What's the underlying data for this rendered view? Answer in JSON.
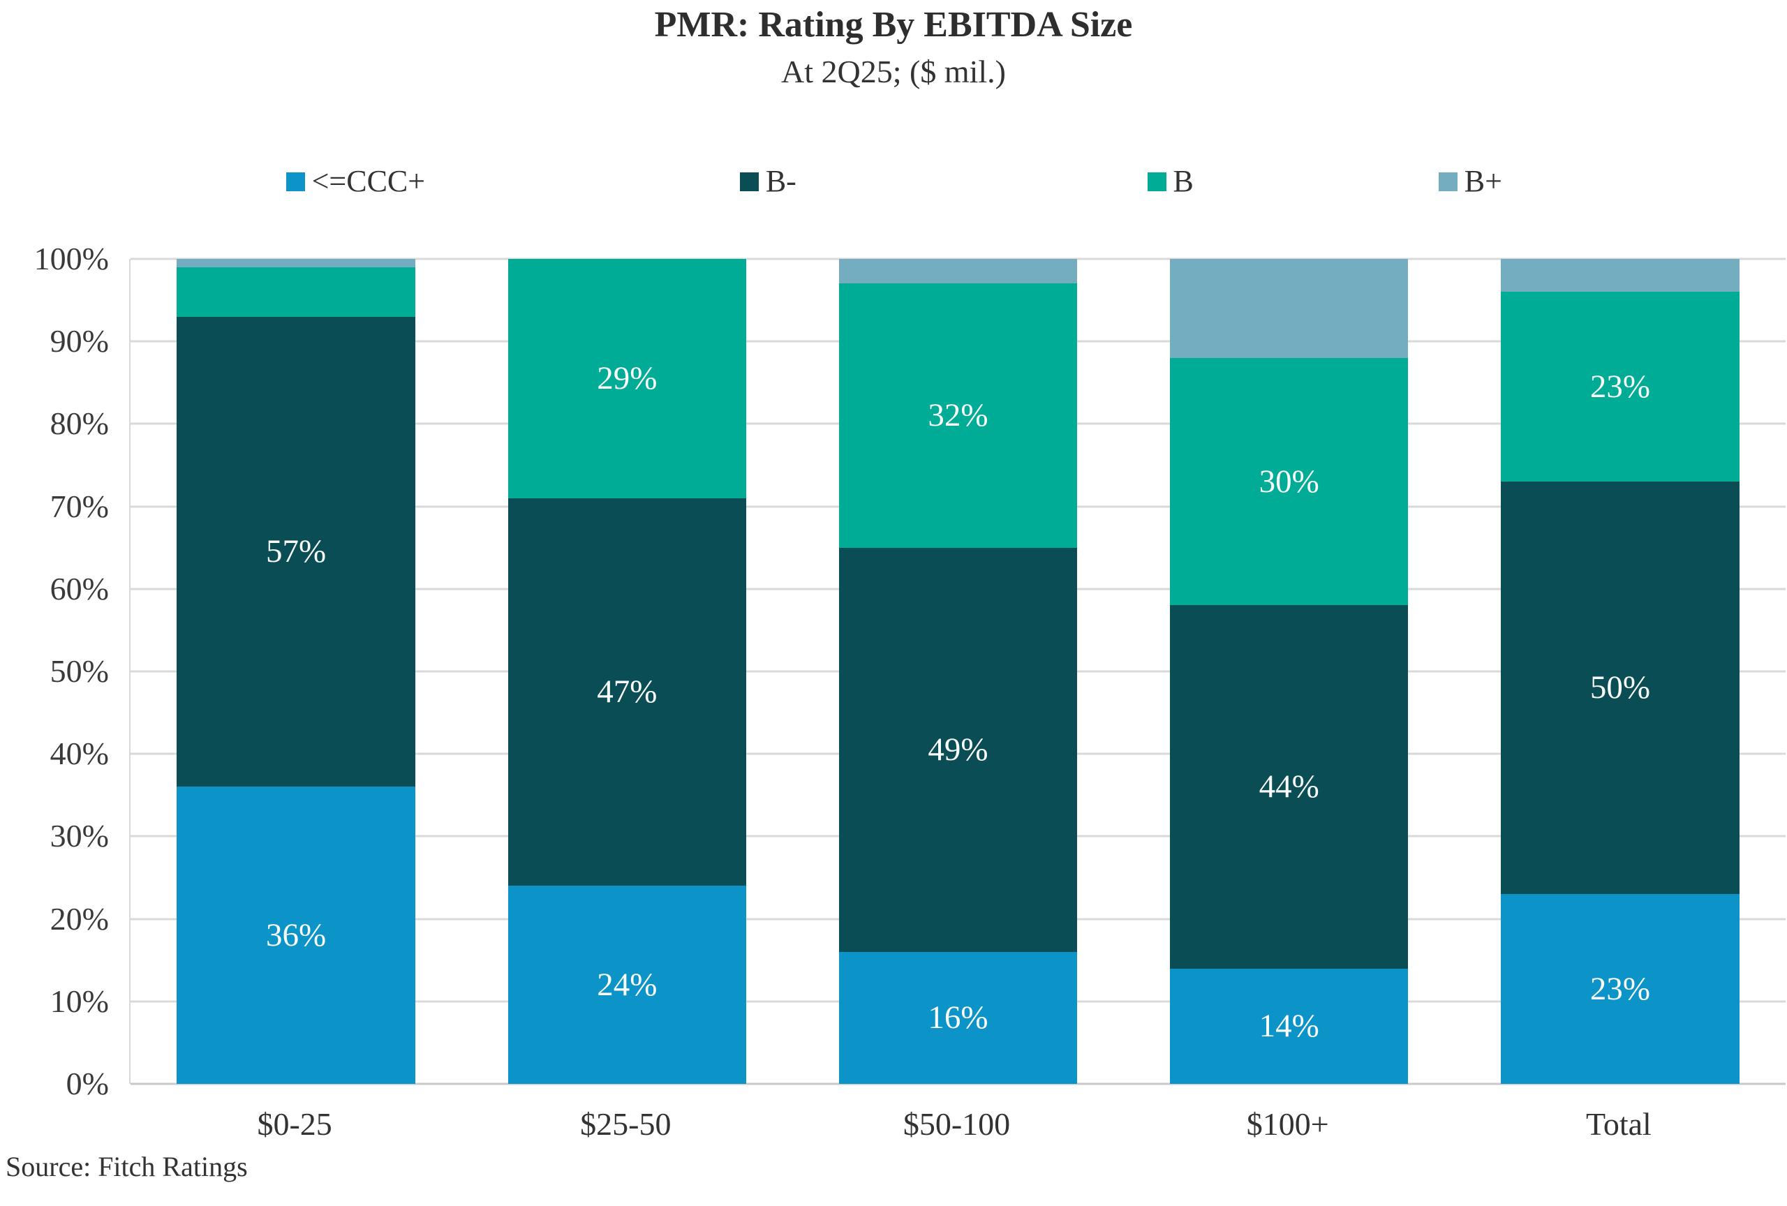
{
  "header": {
    "title": "PMR: Rating By EBITDA Size",
    "subtitle": "At 2Q25; ($ mil.)"
  },
  "footer": {
    "source": "Source: Fitch Ratings"
  },
  "colors": {
    "ccc_plus": "#0c93c8",
    "b_minus": "#0b4d55",
    "b": "#00ac96",
    "b_plus": "#73adbf",
    "gridline": "#d9d9d9",
    "label_text": "#333333",
    "value_label_text": "#fbfdfd"
  },
  "chart_data": {
    "type": "bar",
    "stacked": true,
    "title": "PMR: Rating By EBITDA Size",
    "subtitle": "At 2Q25; ($ mil.)",
    "xlabel": "",
    "ylabel": "",
    "ylim": [
      0,
      100
    ],
    "grid": true,
    "legend_position": "top",
    "y_ticks": [
      "0%",
      "10%",
      "20%",
      "30%",
      "40%",
      "50%",
      "60%",
      "70%",
      "80%",
      "90%",
      "100%"
    ],
    "categories": [
      "$0-25",
      "$25-50",
      "$50-100",
      "$100+",
      "Total"
    ],
    "series": [
      {
        "name": "<=CCC+",
        "color": "#0c93c8",
        "values": [
          36,
          24,
          16,
          14,
          23
        ],
        "labels": [
          "36%",
          "24%",
          "16%",
          "14%",
          "23%"
        ]
      },
      {
        "name": "B-",
        "color": "#0b4d55",
        "values": [
          57,
          47,
          49,
          44,
          50
        ],
        "labels": [
          "57%",
          "47%",
          "49%",
          "44%",
          "50%"
        ]
      },
      {
        "name": "B",
        "color": "#00ac96",
        "values": [
          6,
          29,
          32,
          30,
          23
        ],
        "labels": [
          "",
          "29%",
          "32%",
          "30%",
          "23%"
        ]
      },
      {
        "name": "B+",
        "color": "#73adbf",
        "values": [
          1,
          0,
          3,
          12,
          4
        ],
        "labels": [
          "",
          "",
          "",
          "",
          ""
        ]
      }
    ]
  }
}
